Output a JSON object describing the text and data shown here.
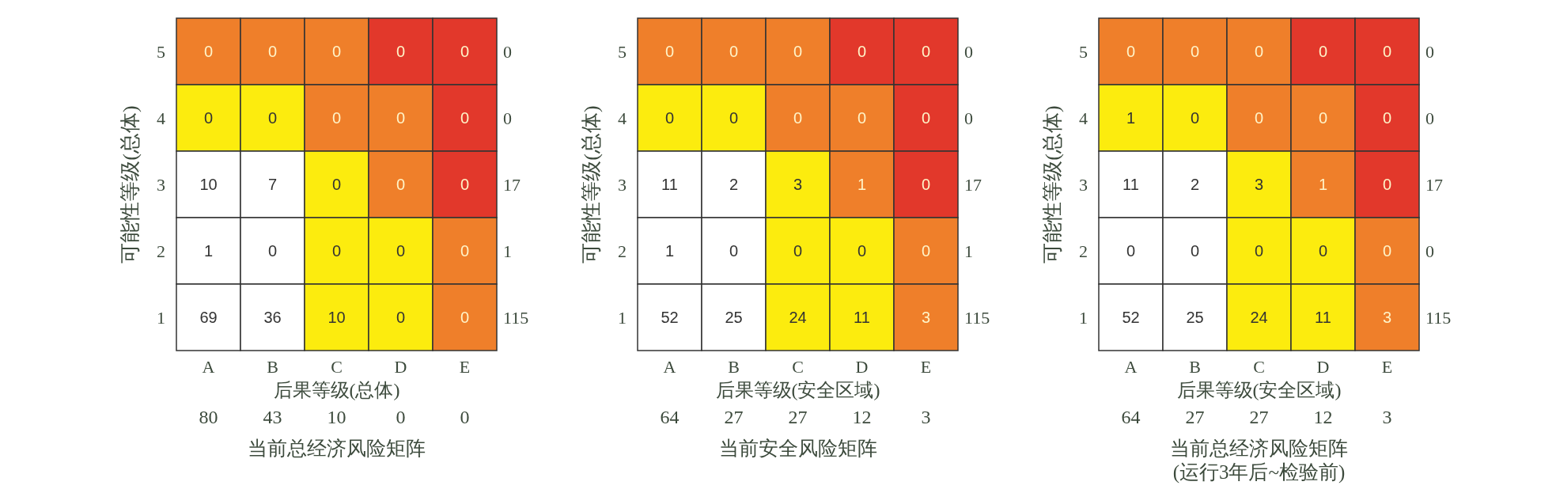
{
  "chart_data": [
    {
      "type": "heatmap",
      "title": "当前总经济风险矩阵",
      "xlabel": "后果等级(总体)",
      "ylabel": "可能性等级(总体)",
      "categories": [
        "A",
        "B",
        "C",
        "D",
        "E"
      ],
      "y_categories": [
        "5",
        "4",
        "3",
        "2",
        "1"
      ],
      "y2_categories": [
        "0",
        "0",
        "17",
        "1",
        "115"
      ],
      "data_labels": true,
      "cells": [
        [
          0,
          0,
          0,
          0,
          0
        ],
        [
          0,
          0,
          0,
          0,
          0
        ],
        [
          10,
          7,
          0,
          0,
          0
        ],
        [
          1,
          0,
          0,
          0,
          0
        ],
        [
          69,
          36,
          10,
          0,
          0
        ]
      ],
      "colors": [
        [
          "#ef7f2a",
          "#ef7f2a",
          "#ef7f2a",
          "#e2382b",
          "#e2382b"
        ],
        [
          "#fcec0e",
          "#fcec0e",
          "#ef7f2a",
          "#ef7f2a",
          "#e2382b"
        ],
        [
          "#ffffff",
          "#ffffff",
          "#fcec0e",
          "#ef7f2a",
          "#e2382b"
        ],
        [
          "#ffffff",
          "#ffffff",
          "#fcec0e",
          "#fcec0e",
          "#ef7f2a"
        ],
        [
          "#ffffff",
          "#ffffff",
          "#fcec0e",
          "#fcec0e",
          "#ef7f2a"
        ]
      ],
      "annotations": [
        "80",
        "43",
        "10",
        "0",
        "0"
      ]
    },
    {
      "type": "heatmap",
      "title": "当前安全风险矩阵",
      "xlabel": "后果等级(安全区域)",
      "ylabel": "可能性等级(总体)",
      "categories": [
        "A",
        "B",
        "C",
        "D",
        "E"
      ],
      "y_categories": [
        "5",
        "4",
        "3",
        "2",
        "1"
      ],
      "y2_categories": [
        "0",
        "0",
        "17",
        "1",
        "115"
      ],
      "data_labels": true,
      "cells": [
        [
          0,
          0,
          0,
          0,
          0
        ],
        [
          0,
          0,
          0,
          0,
          0
        ],
        [
          11,
          2,
          3,
          1,
          0
        ],
        [
          1,
          0,
          0,
          0,
          0
        ],
        [
          52,
          25,
          24,
          11,
          3
        ]
      ],
      "colors": [
        [
          "#ef7f2a",
          "#ef7f2a",
          "#ef7f2a",
          "#e2382b",
          "#e2382b"
        ],
        [
          "#fcec0e",
          "#fcec0e",
          "#ef7f2a",
          "#ef7f2a",
          "#e2382b"
        ],
        [
          "#ffffff",
          "#ffffff",
          "#fcec0e",
          "#ef7f2a",
          "#e2382b"
        ],
        [
          "#ffffff",
          "#ffffff",
          "#fcec0e",
          "#fcec0e",
          "#ef7f2a"
        ],
        [
          "#ffffff",
          "#ffffff",
          "#fcec0e",
          "#fcec0e",
          "#ef7f2a"
        ]
      ],
      "annotations": [
        "64",
        "27",
        "27",
        "12",
        "3"
      ]
    },
    {
      "type": "heatmap",
      "title": "当前总经济风险矩阵",
      "subtitle": "(运行3年后~检验前)",
      "xlabel": "后果等级(安全区域)",
      "ylabel": "可能性等级(总体)",
      "categories": [
        "A",
        "B",
        "C",
        "D",
        "E"
      ],
      "y_categories": [
        "5",
        "4",
        "3",
        "2",
        "1"
      ],
      "y2_categories": [
        "0",
        "0",
        "17",
        "0",
        "115"
      ],
      "data_labels": true,
      "cells": [
        [
          0,
          0,
          0,
          0,
          0
        ],
        [
          1,
          0,
          0,
          0,
          0
        ],
        [
          11,
          2,
          3,
          1,
          0
        ],
        [
          0,
          0,
          0,
          0,
          0
        ],
        [
          52,
          25,
          24,
          11,
          3
        ]
      ],
      "colors": [
        [
          "#ef7f2a",
          "#ef7f2a",
          "#ef7f2a",
          "#e2382b",
          "#e2382b"
        ],
        [
          "#fcec0e",
          "#fcec0e",
          "#ef7f2a",
          "#ef7f2a",
          "#e2382b"
        ],
        [
          "#ffffff",
          "#ffffff",
          "#fcec0e",
          "#ef7f2a",
          "#e2382b"
        ],
        [
          "#ffffff",
          "#ffffff",
          "#fcec0e",
          "#fcec0e",
          "#ef7f2a"
        ],
        [
          "#ffffff",
          "#ffffff",
          "#fcec0e",
          "#fcec0e",
          "#ef7f2a"
        ]
      ],
      "annotations": [
        "64",
        "27",
        "27",
        "12",
        "3"
      ]
    }
  ]
}
